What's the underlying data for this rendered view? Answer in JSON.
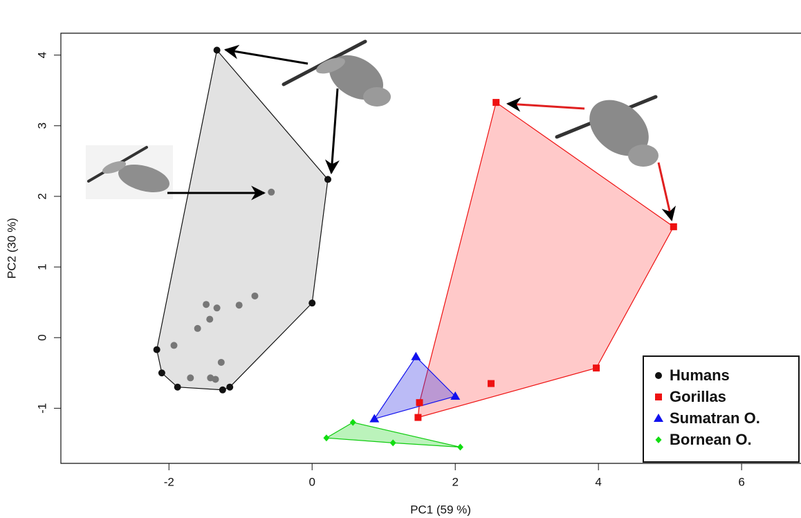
{
  "chart_data": {
    "type": "scatter",
    "xlabel": "PC1 (59 %)",
    "ylabel": "PC2 (30 %)",
    "xlim": [
      -3.51,
      6.83
    ],
    "ylim": [
      -1.78,
      4.31
    ],
    "xticks": [
      -2,
      0,
      2,
      4,
      6
    ],
    "yticks": [
      -1,
      0,
      1,
      2,
      3,
      4
    ],
    "legend": "bottom-right",
    "convex_hull": true,
    "series": [
      {
        "name": "Humans",
        "color": "#111111",
        "interior_color": "#777777",
        "hull_fill": "#e2e2e2",
        "hull_stroke": "#111111",
        "marker": "circle",
        "x": [
          -1.33,
          0.22,
          0.0,
          -1.15,
          -1.25,
          -1.88,
          -2.1,
          -2.17,
          -0.57,
          -0.8,
          -1.02,
          -1.33,
          -1.48,
          -1.43,
          -1.6,
          -1.93,
          -1.27,
          -1.42,
          -1.35,
          -1.7
        ],
        "values": [
          4.07,
          2.24,
          0.49,
          -0.7,
          -0.74,
          -0.7,
          -0.5,
          -0.17,
          2.06,
          0.59,
          0.46,
          0.42,
          0.47,
          0.26,
          0.13,
          -0.11,
          -0.35,
          -0.57,
          -0.59,
          -0.57
        ]
      },
      {
        "name": "Gorillas",
        "color": "#ee1111",
        "hull_fill": "rgba(255,120,120,0.4)",
        "hull_stroke": "#ee1111",
        "marker": "square",
        "x": [
          2.57,
          5.05,
          3.97,
          1.48,
          1.5,
          2.5
        ],
        "values": [
          3.33,
          1.57,
          -0.43,
          -1.13,
          -0.92,
          -0.65
        ]
      },
      {
        "name": "Sumatran O.",
        "color": "#1111ee",
        "hull_fill": "rgba(60,60,230,0.35)",
        "hull_stroke": "#1111ee",
        "marker": "triangle",
        "x": [
          1.45,
          2.0,
          0.87
        ],
        "values": [
          -0.27,
          -0.83,
          -1.15
        ]
      },
      {
        "name": "Bornean O.",
        "color": "#11dd11",
        "hull_fill": "rgba(60,220,60,0.35)",
        "hull_stroke": "#11cc11",
        "marker": "diamond",
        "x": [
          0.2,
          0.57,
          2.07,
          1.13
        ],
        "values": [
          -1.42,
          -1.2,
          -1.55,
          -1.49
        ]
      }
    ]
  }
}
